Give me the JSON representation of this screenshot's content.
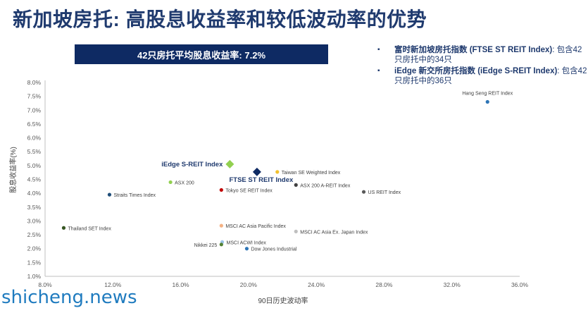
{
  "title": "新加坡房托: 高股息收益率和较低波动率的优势",
  "banner": "42只房托平均股息收益率: 7.2%",
  "legend": [
    {
      "bold": "富时新加坡房托指数 (FTSE ST REIT Index)",
      "rest": ": 包含42只房托中的34只"
    },
    {
      "bold": "iEdge 新交所房托指数 (iEdge S-REIT Index)",
      "rest": ": 包含42只房托中的36只"
    }
  ],
  "watermark": "shicheng.news",
  "colors": {
    "title": "#1f3a6e",
    "banner": "#0e2a63"
  },
  "chart_data": {
    "type": "scatter",
    "xlabel": "90日历史波动率",
    "ylabel": "股息收益率(%)",
    "xlim": [
      8.0,
      36.0
    ],
    "ylim": [
      1.0,
      8.0
    ],
    "x_ticks": [
      "8.0%",
      "12.0%",
      "16.0%",
      "20.0%",
      "24.0%",
      "28.0%",
      "32.0%",
      "36.0%"
    ],
    "y_ticks": [
      "1.0%",
      "1.5%",
      "2.0%",
      "2.5%",
      "3.0%",
      "3.5%",
      "4.0%",
      "4.5%",
      "5.0%",
      "5.5%",
      "6.0%",
      "6.5%",
      "7.0%",
      "7.5%",
      "8.0%"
    ],
    "points": [
      {
        "name": "Hang Seng REIT Index",
        "x": 34.1,
        "y": 7.3,
        "color": "#2e75b6",
        "marker": "circle",
        "label_pos": "above"
      },
      {
        "name": "iEdge S-REIT Index",
        "x": 18.9,
        "y": 5.05,
        "color": "#92d050",
        "marker": "diamond",
        "label_pos": "left",
        "highlight": true
      },
      {
        "name": "FTSE ST REIT Index",
        "x": 20.5,
        "y": 4.77,
        "color": "#0e2a63",
        "marker": "diamond",
        "label_pos": "below",
        "highlight": true
      },
      {
        "name": "Taiwan SE Weighted Index",
        "x": 21.7,
        "y": 4.77,
        "color": "#f2c12e",
        "marker": "circle",
        "label_pos": "right"
      },
      {
        "name": "ASX 200",
        "x": 15.4,
        "y": 4.4,
        "color": "#92d050",
        "marker": "circle",
        "label_pos": "right"
      },
      {
        "name": "ASX 200 A-REIT Index",
        "x": 22.8,
        "y": 4.3,
        "color": "#404040",
        "marker": "circle",
        "label_pos": "right"
      },
      {
        "name": "Tokyo SE REIT Index",
        "x": 18.4,
        "y": 4.12,
        "color": "#c00000",
        "marker": "circle",
        "label_pos": "right"
      },
      {
        "name": "US REIT Index",
        "x": 26.8,
        "y": 4.05,
        "color": "#595959",
        "marker": "circle",
        "label_pos": "right"
      },
      {
        "name": "Straits Times Index",
        "x": 11.8,
        "y": 3.95,
        "color": "#1f4e79",
        "marker": "circle",
        "label_pos": "right"
      },
      {
        "name": "Thailand SET Index",
        "x": 9.1,
        "y": 2.75,
        "color": "#375623",
        "marker": "circle",
        "label_pos": "right"
      },
      {
        "name": "MSCI AC Asia Pacific Index",
        "x": 18.4,
        "y": 2.83,
        "color": "#f4b183",
        "marker": "circle",
        "label_pos": "right"
      },
      {
        "name": "MSCI AC Asia Ex. Japan Index",
        "x": 22.8,
        "y": 2.62,
        "color": "#bfbfbf",
        "marker": "circle",
        "label_pos": "right"
      },
      {
        "name": "MSCI ACWI Index",
        "x": 18.45,
        "y": 2.24,
        "color": "#9dc3e6",
        "marker": "circle",
        "label_pos": "right"
      },
      {
        "name": "Nikkei 225",
        "x": 18.4,
        "y": 2.15,
        "color": "#548235",
        "marker": "circle",
        "label_pos": "left"
      },
      {
        "name": "Dow Jones Industrial",
        "x": 19.9,
        "y": 2.0,
        "color": "#2e75b6",
        "marker": "circle",
        "label_pos": "right"
      }
    ]
  }
}
